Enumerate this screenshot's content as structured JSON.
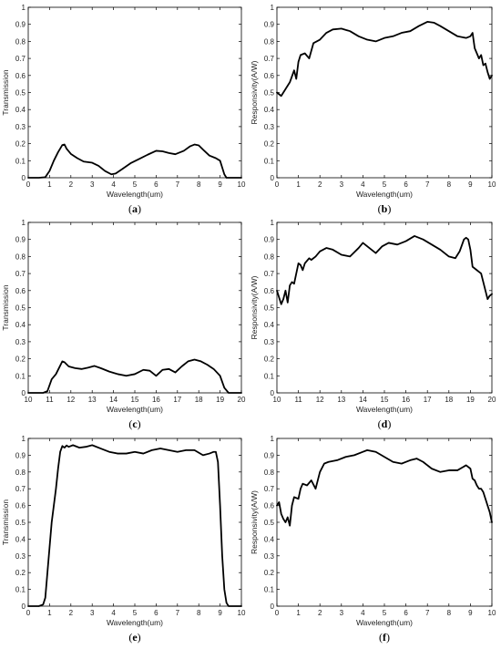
{
  "chart_data": [
    {
      "type": "line",
      "caption_prefix": "(",
      "caption_letter": "a",
      "caption_suffix": ")",
      "xlabel": "Wavelength(um)",
      "ylabel": "Transmission",
      "xlim": [
        0,
        10
      ],
      "ylim": [
        0,
        1
      ],
      "xticks": [
        "0",
        "1",
        "2",
        "3",
        "4",
        "5",
        "6",
        "7",
        "8",
        "9",
        "10"
      ],
      "yticks": [
        "0",
        "0.1",
        "0.2",
        "0.3",
        "0.4",
        "0.5",
        "0.6",
        "0.7",
        "0.8",
        "0.9",
        "1"
      ],
      "grid": false,
      "series": [
        {
          "x": [
            0,
            0.5,
            0.8,
            1.0,
            1.2,
            1.4,
            1.6,
            1.7,
            1.8,
            2.0,
            2.3,
            2.6,
            3.0,
            3.3,
            3.6,
            3.9,
            4.1,
            4.4,
            4.8,
            5.2,
            5.6,
            6.0,
            6.3,
            6.6,
            6.9,
            7.3,
            7.6,
            7.8,
            8.0,
            8.2,
            8.5,
            8.8,
            9.0,
            9.1,
            9.2,
            9.3,
            9.5,
            10
          ],
          "y": [
            0,
            0,
            0.003,
            0.04,
            0.1,
            0.15,
            0.192,
            0.195,
            0.17,
            0.14,
            0.115,
            0.095,
            0.088,
            0.07,
            0.04,
            0.02,
            0.025,
            0.05,
            0.085,
            0.11,
            0.135,
            0.158,
            0.155,
            0.145,
            0.138,
            0.158,
            0.185,
            0.195,
            0.19,
            0.165,
            0.13,
            0.115,
            0.1,
            0.06,
            0.02,
            0,
            0,
            0
          ]
        }
      ]
    },
    {
      "type": "line",
      "caption_prefix": "(",
      "caption_letter": "b",
      "caption_suffix": ")",
      "xlabel": "Wavelength(um)",
      "ylabel": "Responsivity(A/W)",
      "xlim": [
        0,
        10
      ],
      "ylim": [
        0,
        1
      ],
      "xticks": [
        "0",
        "1",
        "2",
        "3",
        "4",
        "5",
        "6",
        "7",
        "8",
        "9",
        "10"
      ],
      "yticks": [
        "0",
        "0.1",
        "0.2",
        "0.3",
        "0.4",
        "0.5",
        "0.6",
        "0.7",
        "0.8",
        "0.9",
        "1"
      ],
      "grid": false,
      "series": [
        {
          "x": [
            0,
            0.2,
            0.4,
            0.6,
            0.8,
            0.9,
            1.0,
            1.1,
            1.3,
            1.5,
            1.7,
            2.0,
            2.3,
            2.6,
            3.0,
            3.4,
            3.8,
            4.2,
            4.6,
            5.0,
            5.4,
            5.8,
            6.2,
            6.6,
            7.0,
            7.3,
            7.6,
            8.0,
            8.4,
            8.8,
            9.0,
            9.1,
            9.2,
            9.3,
            9.4,
            9.5,
            9.6,
            9.7,
            9.8,
            9.9,
            10
          ],
          "y": [
            0.5,
            0.48,
            0.52,
            0.56,
            0.63,
            0.58,
            0.68,
            0.72,
            0.73,
            0.7,
            0.79,
            0.81,
            0.85,
            0.87,
            0.875,
            0.86,
            0.83,
            0.81,
            0.8,
            0.82,
            0.83,
            0.85,
            0.86,
            0.89,
            0.915,
            0.91,
            0.89,
            0.86,
            0.83,
            0.82,
            0.83,
            0.85,
            0.76,
            0.73,
            0.7,
            0.72,
            0.66,
            0.67,
            0.62,
            0.58,
            0.6
          ]
        }
      ]
    },
    {
      "type": "line",
      "caption_prefix": "(",
      "caption_letter": "c",
      "caption_suffix": ")",
      "xlabel": "Wavelength(um)",
      "ylabel": "Transmission",
      "xlim": [
        10,
        20
      ],
      "ylim": [
        0,
        1
      ],
      "xticks": [
        "10",
        "11",
        "12",
        "13",
        "14",
        "15",
        "16",
        "17",
        "18",
        "19",
        "20"
      ],
      "yticks": [
        "0",
        "0.1",
        "0.2",
        "0.3",
        "0.4",
        "0.5",
        "0.6",
        "0.7",
        "0.8",
        "0.9",
        "1"
      ],
      "grid": false,
      "series": [
        {
          "x": [
            10,
            10.7,
            10.9,
            11.1,
            11.3,
            11.5,
            11.6,
            11.7,
            11.9,
            12.2,
            12.5,
            12.8,
            13.1,
            13.4,
            13.8,
            14.2,
            14.6,
            15.0,
            15.4,
            15.7,
            16.0,
            16.3,
            16.6,
            16.9,
            17.2,
            17.5,
            17.8,
            18.1,
            18.4,
            18.7,
            19.0,
            19.2,
            19.4,
            20
          ],
          "y": [
            0,
            0,
            0.01,
            0.08,
            0.11,
            0.16,
            0.185,
            0.18,
            0.155,
            0.145,
            0.14,
            0.148,
            0.158,
            0.145,
            0.125,
            0.11,
            0.1,
            0.11,
            0.135,
            0.13,
            0.1,
            0.135,
            0.14,
            0.12,
            0.155,
            0.185,
            0.195,
            0.185,
            0.165,
            0.14,
            0.1,
            0.03,
            0,
            0
          ]
        }
      ]
    },
    {
      "type": "line",
      "caption_prefix": "(",
      "caption_letter": "d",
      "caption_suffix": ")",
      "xlabel": "Wavelength(um)",
      "ylabel": "Responsivity(A/W)",
      "xlim": [
        10,
        20
      ],
      "ylim": [
        0,
        1
      ],
      "xticks": [
        "10",
        "11",
        "12",
        "13",
        "14",
        "15",
        "16",
        "17",
        "18",
        "19",
        "20"
      ],
      "yticks": [
        "0",
        "0.1",
        "0.2",
        "0.3",
        "0.4",
        "0.5",
        "0.6",
        "0.7",
        "0.8",
        "0.9",
        "1"
      ],
      "grid": false,
      "series": [
        {
          "x": [
            10,
            10.2,
            10.3,
            10.4,
            10.5,
            10.6,
            10.7,
            10.8,
            11.0,
            11.1,
            11.2,
            11.3,
            11.5,
            11.6,
            11.8,
            12.0,
            12.3,
            12.6,
            13.0,
            13.4,
            13.8,
            14.0,
            14.3,
            14.6,
            14.9,
            15.2,
            15.6,
            16.0,
            16.4,
            16.8,
            17.2,
            17.6,
            18.0,
            18.3,
            18.5,
            18.7,
            18.8,
            18.9,
            19.0,
            19.1,
            19.3,
            19.5,
            19.7,
            19.8,
            19.9,
            20
          ],
          "y": [
            0.6,
            0.52,
            0.55,
            0.6,
            0.53,
            0.63,
            0.65,
            0.64,
            0.76,
            0.75,
            0.72,
            0.76,
            0.79,
            0.78,
            0.8,
            0.83,
            0.85,
            0.84,
            0.81,
            0.8,
            0.85,
            0.88,
            0.85,
            0.82,
            0.86,
            0.88,
            0.87,
            0.89,
            0.92,
            0.9,
            0.87,
            0.84,
            0.8,
            0.79,
            0.83,
            0.9,
            0.91,
            0.9,
            0.84,
            0.74,
            0.72,
            0.7,
            0.6,
            0.55,
            0.57,
            0.58
          ]
        }
      ]
    },
    {
      "type": "line",
      "caption_prefix": "(",
      "caption_letter": "e",
      "caption_suffix": ")",
      "xlabel": "Wavelength(um)",
      "ylabel": "Transmission",
      "xlim": [
        0,
        10
      ],
      "ylim": [
        0,
        1
      ],
      "xticks": [
        "0",
        "1",
        "2",
        "3",
        "4",
        "5",
        "6",
        "7",
        "8",
        "9",
        "10"
      ],
      "yticks": [
        "0",
        "0.1",
        "0.2",
        "0.3",
        "0.4",
        "0.5",
        "0.6",
        "0.7",
        "0.8",
        "0.9",
        "1"
      ],
      "grid": false,
      "series": [
        {
          "x": [
            0,
            0.5,
            0.7,
            0.8,
            0.9,
            1.0,
            1.1,
            1.2,
            1.3,
            1.4,
            1.5,
            1.6,
            1.7,
            1.8,
            1.9,
            2.1,
            2.4,
            2.7,
            3.0,
            3.4,
            3.8,
            4.2,
            4.6,
            5.0,
            5.4,
            5.8,
            6.2,
            6.6,
            7.0,
            7.4,
            7.8,
            8.2,
            8.5,
            8.7,
            8.8,
            8.9,
            9.0,
            9.1,
            9.2,
            9.3,
            9.4,
            9.5,
            10
          ],
          "y": [
            0,
            0,
            0.01,
            0.05,
            0.2,
            0.35,
            0.5,
            0.6,
            0.7,
            0.82,
            0.92,
            0.955,
            0.945,
            0.958,
            0.95,
            0.96,
            0.945,
            0.95,
            0.96,
            0.94,
            0.92,
            0.91,
            0.91,
            0.92,
            0.91,
            0.93,
            0.94,
            0.93,
            0.92,
            0.93,
            0.93,
            0.9,
            0.91,
            0.92,
            0.92,
            0.86,
            0.6,
            0.3,
            0.1,
            0.02,
            0,
            0,
            0
          ]
        }
      ]
    },
    {
      "type": "line",
      "caption_prefix": "(",
      "caption_letter": "f",
      "caption_suffix": ")",
      "xlabel": "Wavelength(um)",
      "ylabel": "Responsivity(A/W)",
      "xlim": [
        0,
        10
      ],
      "ylim": [
        0,
        1
      ],
      "xticks": [
        "0",
        "1",
        "2",
        "3",
        "4",
        "5",
        "6",
        "7",
        "8",
        "9",
        "10"
      ],
      "yticks": [
        "0",
        "0.1",
        "0.2",
        "0.3",
        "0.4",
        "0.5",
        "0.6",
        "0.7",
        "0.8",
        "0.9",
        "1"
      ],
      "grid": false,
      "series": [
        {
          "x": [
            0,
            0.1,
            0.2,
            0.3,
            0.4,
            0.5,
            0.6,
            0.7,
            0.8,
            1.0,
            1.1,
            1.2,
            1.4,
            1.6,
            1.8,
            2.0,
            2.2,
            2.4,
            2.8,
            3.2,
            3.6,
            4.0,
            4.2,
            4.6,
            5.0,
            5.4,
            5.8,
            6.2,
            6.5,
            6.8,
            7.2,
            7.6,
            8.0,
            8.4,
            8.8,
            9.0,
            9.1,
            9.2,
            9.3,
            9.4,
            9.5,
            9.6,
            9.7,
            9.8,
            9.9,
            10
          ],
          "y": [
            0.6,
            0.62,
            0.55,
            0.52,
            0.5,
            0.53,
            0.48,
            0.6,
            0.65,
            0.64,
            0.7,
            0.73,
            0.72,
            0.75,
            0.7,
            0.8,
            0.85,
            0.86,
            0.87,
            0.89,
            0.9,
            0.92,
            0.93,
            0.92,
            0.89,
            0.86,
            0.85,
            0.87,
            0.88,
            0.86,
            0.82,
            0.8,
            0.81,
            0.81,
            0.84,
            0.82,
            0.76,
            0.75,
            0.72,
            0.7,
            0.7,
            0.68,
            0.64,
            0.6,
            0.56,
            0.5
          ]
        }
      ]
    }
  ]
}
